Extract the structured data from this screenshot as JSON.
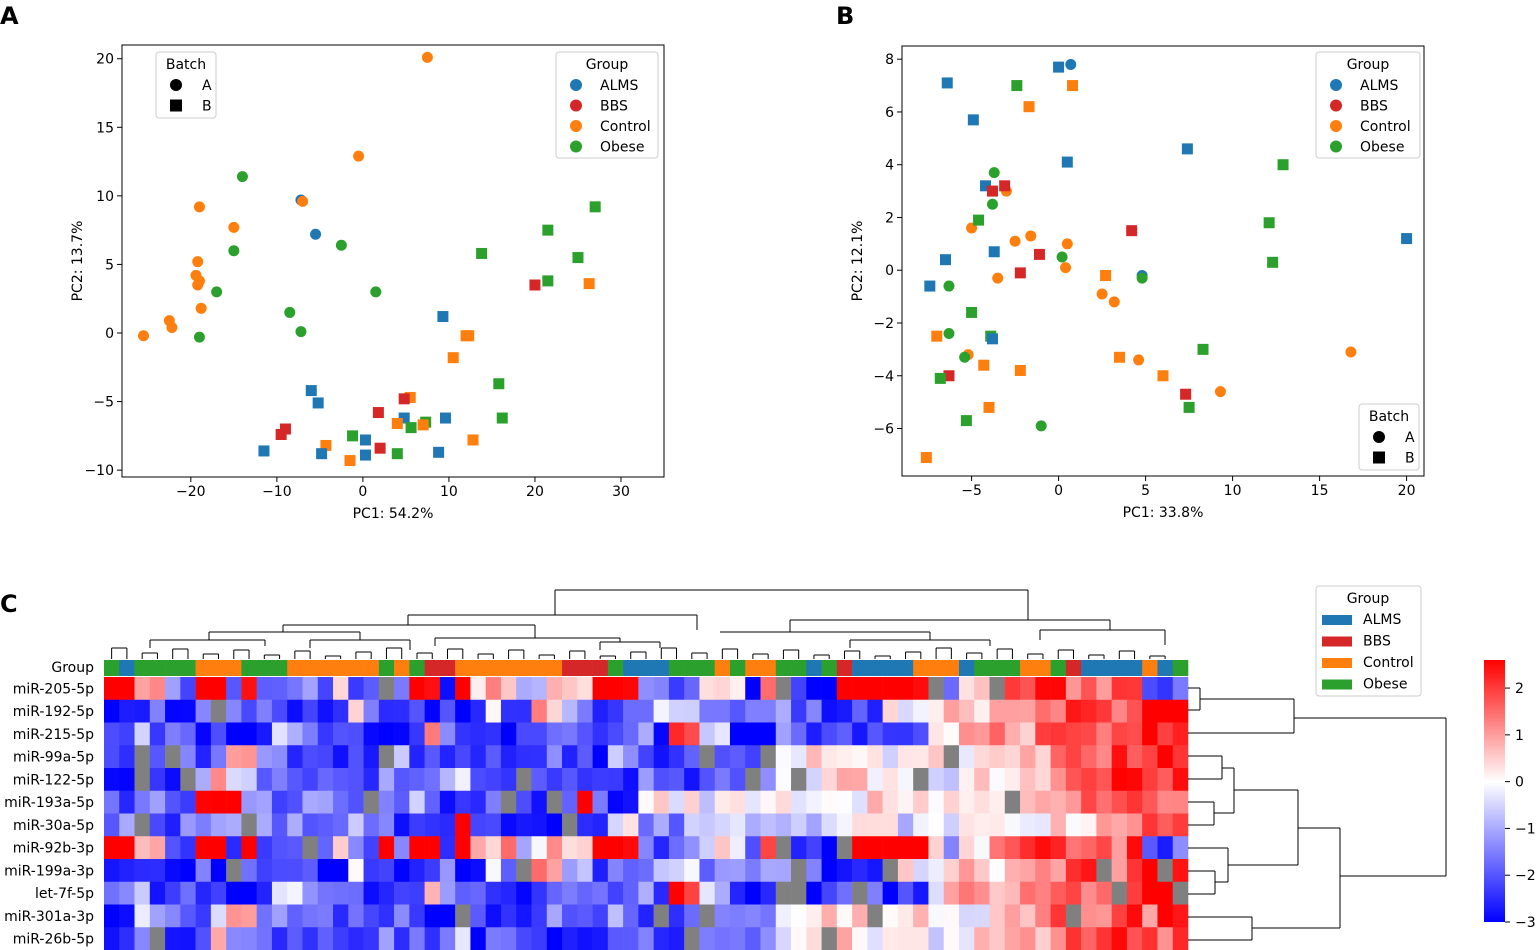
{
  "colors": {
    "ALMS": "#1f77b4",
    "BBS": "#d62728",
    "Control": "#ff7f0e",
    "Obese": "#2ca02c",
    "missing": "#808080"
  },
  "chart_data": [
    {
      "panel": "A",
      "type": "scatter",
      "xlabel": "PC1: 54.2%",
      "ylabel": "PC2: 13.7%",
      "xlim": [
        -28,
        35
      ],
      "ylim": [
        -10.5,
        21
      ],
      "xticks": [
        -20,
        -10,
        0,
        10,
        20,
        30
      ],
      "yticks": [
        -10,
        -5,
        0,
        5,
        10,
        15,
        20
      ],
      "legend_group": {
        "title": "Group",
        "entries": [
          "ALMS",
          "BBS",
          "Control",
          "Obese"
        ],
        "position": "top-right"
      },
      "legend_batch": {
        "title": "Batch",
        "entries": [
          "A",
          "B"
        ],
        "position": "top-left"
      },
      "points": [
        {
          "x": 7.5,
          "y": 20.1,
          "g": "Control",
          "b": "A"
        },
        {
          "x": -0.5,
          "y": 12.9,
          "g": "Control",
          "b": "A"
        },
        {
          "x": -14,
          "y": 11.4,
          "g": "Obese",
          "b": "A"
        },
        {
          "x": -7.2,
          "y": 9.7,
          "g": "ALMS",
          "b": "A"
        },
        {
          "x": -7.0,
          "y": 9.6,
          "g": "Control",
          "b": "A"
        },
        {
          "x": -19,
          "y": 9.2,
          "g": "Control",
          "b": "A"
        },
        {
          "x": -15,
          "y": 7.7,
          "g": "Control",
          "b": "A"
        },
        {
          "x": -5.5,
          "y": 7.2,
          "g": "ALMS",
          "b": "A"
        },
        {
          "x": -2.5,
          "y": 6.4,
          "g": "Obese",
          "b": "A"
        },
        {
          "x": -15,
          "y": 6.0,
          "g": "Obese",
          "b": "A"
        },
        {
          "x": -19.2,
          "y": 5.2,
          "g": "Control",
          "b": "A"
        },
        {
          "x": -19.4,
          "y": 4.2,
          "g": "Control",
          "b": "A"
        },
        {
          "x": -19,
          "y": 3.8,
          "g": "Control",
          "b": "A"
        },
        {
          "x": -19.2,
          "y": 3.5,
          "g": "Control",
          "b": "A"
        },
        {
          "x": -17,
          "y": 3.0,
          "g": "Obese",
          "b": "A"
        },
        {
          "x": 1.5,
          "y": 3.0,
          "g": "Obese",
          "b": "A"
        },
        {
          "x": -18.8,
          "y": 1.8,
          "g": "Control",
          "b": "A"
        },
        {
          "x": -8.5,
          "y": 1.5,
          "g": "Obese",
          "b": "A"
        },
        {
          "x": -22.5,
          "y": 0.9,
          "g": "Control",
          "b": "A"
        },
        {
          "x": -22.2,
          "y": 0.4,
          "g": "Control",
          "b": "A"
        },
        {
          "x": -7.2,
          "y": 0.1,
          "g": "Obese",
          "b": "A"
        },
        {
          "x": -25.5,
          "y": -0.2,
          "g": "Control",
          "b": "A"
        },
        {
          "x": -19,
          "y": -0.3,
          "g": "Obese",
          "b": "A"
        },
        {
          "x": 13.8,
          "y": 5.8,
          "g": "Obese",
          "b": "B"
        },
        {
          "x": 21.5,
          "y": 7.5,
          "g": "Obese",
          "b": "B"
        },
        {
          "x": 27,
          "y": 9.2,
          "g": "Obese",
          "b": "B"
        },
        {
          "x": 25,
          "y": 5.5,
          "g": "Obese",
          "b": "B"
        },
        {
          "x": 21.5,
          "y": 3.8,
          "g": "Obese",
          "b": "B"
        },
        {
          "x": 20,
          "y": 3.5,
          "g": "BBS",
          "b": "B"
        },
        {
          "x": 26.3,
          "y": 3.6,
          "g": "Control",
          "b": "B"
        },
        {
          "x": 9.3,
          "y": 1.2,
          "g": "ALMS",
          "b": "B"
        },
        {
          "x": 12,
          "y": -0.2,
          "g": "Control",
          "b": "B"
        },
        {
          "x": 12.3,
          "y": -0.2,
          "g": "Control",
          "b": "B"
        },
        {
          "x": 10.5,
          "y": -1.8,
          "g": "Control",
          "b": "B"
        },
        {
          "x": 15.8,
          "y": -3.7,
          "g": "Obese",
          "b": "B"
        },
        {
          "x": -6,
          "y": -4.2,
          "g": "ALMS",
          "b": "B"
        },
        {
          "x": -5.2,
          "y": -5.1,
          "g": "ALMS",
          "b": "B"
        },
        {
          "x": 5.5,
          "y": -4.7,
          "g": "Control",
          "b": "B"
        },
        {
          "x": 4.8,
          "y": -4.8,
          "g": "BBS",
          "b": "B"
        },
        {
          "x": 1.8,
          "y": -5.8,
          "g": "BBS",
          "b": "B"
        },
        {
          "x": 4.8,
          "y": -6.2,
          "g": "ALMS",
          "b": "B"
        },
        {
          "x": 9.6,
          "y": -6.2,
          "g": "ALMS",
          "b": "B"
        },
        {
          "x": 16.2,
          "y": -6.2,
          "g": "Obese",
          "b": "B"
        },
        {
          "x": 7.3,
          "y": -6.5,
          "g": "Obese",
          "b": "B"
        },
        {
          "x": 4,
          "y": -6.6,
          "g": "Control",
          "b": "B"
        },
        {
          "x": 7,
          "y": -6.7,
          "g": "Control",
          "b": "B"
        },
        {
          "x": 5.6,
          "y": -6.9,
          "g": "Obese",
          "b": "B"
        },
        {
          "x": -9,
          "y": -7.0,
          "g": "BBS",
          "b": "B"
        },
        {
          "x": -9.5,
          "y": -7.4,
          "g": "BBS",
          "b": "B"
        },
        {
          "x": -1.2,
          "y": -7.5,
          "g": "Obese",
          "b": "B"
        },
        {
          "x": 0.3,
          "y": -7.8,
          "g": "ALMS",
          "b": "B"
        },
        {
          "x": 12.8,
          "y": -7.8,
          "g": "Control",
          "b": "B"
        },
        {
          "x": -4.3,
          "y": -8.2,
          "g": "Control",
          "b": "B"
        },
        {
          "x": 2,
          "y": -8.4,
          "g": "BBS",
          "b": "B"
        },
        {
          "x": -11.5,
          "y": -8.6,
          "g": "ALMS",
          "b": "B"
        },
        {
          "x": 8.8,
          "y": -8.7,
          "g": "ALMS",
          "b": "B"
        },
        {
          "x": -4.8,
          "y": -8.8,
          "g": "ALMS",
          "b": "B"
        },
        {
          "x": 4,
          "y": -8.8,
          "g": "Obese",
          "b": "B"
        },
        {
          "x": 0.3,
          "y": -8.9,
          "g": "ALMS",
          "b": "B"
        },
        {
          "x": -1.5,
          "y": -9.3,
          "g": "Control",
          "b": "B"
        }
      ]
    },
    {
      "panel": "B",
      "type": "scatter",
      "xlabel": "PC1: 33.8%",
      "ylabel": "PC2: 12.1%",
      "xlim": [
        -9,
        21
      ],
      "ylim": [
        -7.8,
        8.5
      ],
      "xticks": [
        -5,
        0,
        5,
        10,
        15,
        20
      ],
      "yticks": [
        -6,
        -4,
        -2,
        0,
        2,
        4,
        6,
        8
      ],
      "legend_group": {
        "title": "Group",
        "entries": [
          "ALMS",
          "BBS",
          "Control",
          "Obese"
        ],
        "position": "top-right"
      },
      "legend_batch": {
        "title": "Batch",
        "entries": [
          "A",
          "B"
        ],
        "position": "bottom-right"
      },
      "points": [
        {
          "x": 0.7,
          "y": 7.8,
          "g": "ALMS",
          "b": "A"
        },
        {
          "x": -3.7,
          "y": 3.7,
          "g": "Obese",
          "b": "A"
        },
        {
          "x": -3.0,
          "y": 3.0,
          "g": "Control",
          "b": "A"
        },
        {
          "x": -3.8,
          "y": 2.5,
          "g": "Obese",
          "b": "A"
        },
        {
          "x": -5.0,
          "y": 1.6,
          "g": "Control",
          "b": "A"
        },
        {
          "x": -1.6,
          "y": 1.3,
          "g": "Control",
          "b": "A"
        },
        {
          "x": -2.5,
          "y": 1.1,
          "g": "Control",
          "b": "A"
        },
        {
          "x": 0.5,
          "y": 1.0,
          "g": "Control",
          "b": "A"
        },
        {
          "x": 0.2,
          "y": 0.5,
          "g": "Obese",
          "b": "A"
        },
        {
          "x": 0.4,
          "y": 0.1,
          "g": "Control",
          "b": "A"
        },
        {
          "x": 4.8,
          "y": -0.2,
          "g": "ALMS",
          "b": "A"
        },
        {
          "x": 4.8,
          "y": -0.3,
          "g": "Obese",
          "b": "A"
        },
        {
          "x": -3.5,
          "y": -0.3,
          "g": "Control",
          "b": "A"
        },
        {
          "x": -6.3,
          "y": -0.6,
          "g": "Obese",
          "b": "A"
        },
        {
          "x": 2.5,
          "y": -0.9,
          "g": "Control",
          "b": "A"
        },
        {
          "x": 3.2,
          "y": -1.2,
          "g": "Control",
          "b": "A"
        },
        {
          "x": -6.3,
          "y": -2.4,
          "g": "Obese",
          "b": "A"
        },
        {
          "x": -5.2,
          "y": -3.2,
          "g": "Control",
          "b": "A"
        },
        {
          "x": -5.4,
          "y": -3.3,
          "g": "Obese",
          "b": "A"
        },
        {
          "x": 4.6,
          "y": -3.4,
          "g": "Control",
          "b": "A"
        },
        {
          "x": 9.3,
          "y": -4.6,
          "g": "Control",
          "b": "A"
        },
        {
          "x": 16.8,
          "y": -3.1,
          "g": "Control",
          "b": "A"
        },
        {
          "x": -1.0,
          "y": -5.9,
          "g": "Obese",
          "b": "A"
        },
        {
          "x": -6.4,
          "y": 7.1,
          "g": "ALMS",
          "b": "B"
        },
        {
          "x": 0.0,
          "y": 7.7,
          "g": "ALMS",
          "b": "B"
        },
        {
          "x": -2.4,
          "y": 7.0,
          "g": "Obese",
          "b": "B"
        },
        {
          "x": 0.8,
          "y": 7.0,
          "g": "Control",
          "b": "B"
        },
        {
          "x": -1.7,
          "y": 6.2,
          "g": "Control",
          "b": "B"
        },
        {
          "x": -4.9,
          "y": 5.7,
          "g": "ALMS",
          "b": "B"
        },
        {
          "x": 7.4,
          "y": 4.6,
          "g": "ALMS",
          "b": "B"
        },
        {
          "x": 0.5,
          "y": 4.1,
          "g": "ALMS",
          "b": "B"
        },
        {
          "x": 12.9,
          "y": 4.0,
          "g": "Obese",
          "b": "B"
        },
        {
          "x": -4.2,
          "y": 3.2,
          "g": "ALMS",
          "b": "B"
        },
        {
          "x": -3.1,
          "y": 3.2,
          "g": "BBS",
          "b": "B"
        },
        {
          "x": -3.8,
          "y": 3.0,
          "g": "BBS",
          "b": "B"
        },
        {
          "x": -4.6,
          "y": 1.9,
          "g": "Obese",
          "b": "B"
        },
        {
          "x": 12.1,
          "y": 1.8,
          "g": "Obese",
          "b": "B"
        },
        {
          "x": 4.2,
          "y": 1.5,
          "g": "BBS",
          "b": "B"
        },
        {
          "x": 20,
          "y": 1.2,
          "g": "ALMS",
          "b": "B"
        },
        {
          "x": -3.7,
          "y": 0.7,
          "g": "ALMS",
          "b": "B"
        },
        {
          "x": -1.1,
          "y": 0.6,
          "g": "BBS",
          "b": "B"
        },
        {
          "x": -6.5,
          "y": 0.4,
          "g": "ALMS",
          "b": "B"
        },
        {
          "x": 12.3,
          "y": 0.3,
          "g": "Obese",
          "b": "B"
        },
        {
          "x": -2.2,
          "y": -0.1,
          "g": "BBS",
          "b": "B"
        },
        {
          "x": 2.7,
          "y": -0.2,
          "g": "Control",
          "b": "B"
        },
        {
          "x": -7.4,
          "y": -0.6,
          "g": "ALMS",
          "b": "B"
        },
        {
          "x": -5.0,
          "y": -1.6,
          "g": "Obese",
          "b": "B"
        },
        {
          "x": -7.0,
          "y": -2.5,
          "g": "Control",
          "b": "B"
        },
        {
          "x": -3.9,
          "y": -2.5,
          "g": "Obese",
          "b": "B"
        },
        {
          "x": -3.8,
          "y": -2.6,
          "g": "ALMS",
          "b": "B"
        },
        {
          "x": 8.3,
          "y": -3.0,
          "g": "Obese",
          "b": "B"
        },
        {
          "x": 3.5,
          "y": -3.3,
          "g": "Control",
          "b": "B"
        },
        {
          "x": -4.3,
          "y": -3.6,
          "g": "Control",
          "b": "B"
        },
        {
          "x": -2.2,
          "y": -3.8,
          "g": "Control",
          "b": "B"
        },
        {
          "x": 6.0,
          "y": -4.0,
          "g": "Control",
          "b": "B"
        },
        {
          "x": -6.3,
          "y": -4.0,
          "g": "BBS",
          "b": "B"
        },
        {
          "x": -6.8,
          "y": -4.1,
          "g": "Obese",
          "b": "B"
        },
        {
          "x": 7.3,
          "y": -4.7,
          "g": "BBS",
          "b": "B"
        },
        {
          "x": -4.0,
          "y": -5.2,
          "g": "Control",
          "b": "B"
        },
        {
          "x": 7.5,
          "y": -5.2,
          "g": "Obese",
          "b": "B"
        },
        {
          "x": -5.3,
          "y": -5.7,
          "g": "Obese",
          "b": "B"
        },
        {
          "x": -7.6,
          "y": -7.1,
          "g": "Control",
          "b": "B"
        }
      ]
    },
    {
      "panel": "C",
      "type": "heatmap",
      "row_label_title": "Group",
      "legend_group": {
        "title": "Group",
        "entries": [
          "ALMS",
          "BBS",
          "Control",
          "Obese"
        ],
        "position": "top-right"
      },
      "colorbar": {
        "min": -3,
        "max": 2.6,
        "ticks": [
          2,
          1,
          0,
          -1,
          -2,
          -3
        ]
      },
      "rows": [
        "miR-205-5p",
        "miR-192-5p",
        "miR-215-5p",
        "miR-99a-5p",
        "miR-122-5p",
        "miR-193a-5p",
        "miR-30a-5p",
        "miR-92b-3p",
        "miR-199a-3p",
        "let-7f-5p",
        "miR-301a-3p",
        "miR-26b-5p"
      ],
      "column_groups": "OAOOOOCCCOOOCCCCCCOCOBBCCCCCCCBBBOAAAOOOCOCCOOAOBAAAACCCAOOOCCOBAAAACAO",
      "values_encoded": [
        "MIJDBMMCMCDDCHCBMCMAMHIIDFIHMMMDCCDGGBJBBBAMMMMMHDHHIKKKJJJJKCBD",
        "BBCADADCBBBAHCBCBDAGCBIEEBCCFFDDDDDCCACBHGGHHHHHJKKKJLMM",
        "CEBCBBBAFFECCBBBIECABBCCCCCDBKFFBAEDBCBCBBGHIIIIJJJJJLLL",
        "BFDCBEIDDCCBCBEBBBBBBBEBBEDBBDCCCCFHHHGGHHHFGHHIJJJKJLL",
        "BCCBDIECCCCCCDBCEFBCBBBBBBDBBDCCEFGHHHGGHFGHHIIJJJKKJK",
        "CEDCMMDDBEDBBCEDBCCBBCMDBFGGFHGFGGFGHGGGHHGHHIJJJKJJ",
        "DCBDEDEDEBCECBBCMBBBBEBFGDDFFFFFGFGGGFFGGGGGHHHIJJJ"
      ]
    }
  ]
}
